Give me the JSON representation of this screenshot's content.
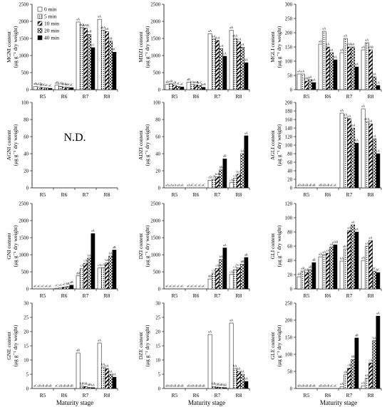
{
  "figure": {
    "xlabel": "Maturity stage",
    "categories": [
      "R5",
      "R6",
      "R7",
      "R8"
    ],
    "legend": [
      "0 min",
      "5 min",
      "10 min",
      "20 min",
      "40 min"
    ]
  },
  "chart_data": [
    {
      "type": "bar",
      "panel": "MGNI",
      "ylabel": "MGNI content",
      "ylabel2": "(μg g⁻¹ dry weight)",
      "ylim": [
        0,
        2500
      ],
      "yticks": [
        0,
        500,
        1000,
        1500,
        2000,
        2500
      ],
      "categories": [
        "R5",
        "R6",
        "R7",
        "R8"
      ],
      "legend": "top-left",
      "series": [
        {
          "name": "0 min",
          "values": [
            90,
            130,
            1980,
            2060
          ]
        },
        {
          "name": "5 min",
          "values": [
            80,
            100,
            1820,
            1740
          ]
        },
        {
          "name": "10 min",
          "values": [
            60,
            80,
            1800,
            1700
          ]
        },
        {
          "name": "20 min",
          "values": [
            50,
            70,
            1620,
            1420
          ]
        },
        {
          "name": "40 min",
          "values": [
            40,
            60,
            1230,
            1100
          ]
        }
      ],
      "labels": [
        [
          "aB",
          "aAB",
          "aBC",
          "aC",
          "aC"
        ],
        [
          "aB",
          "bAB",
          "abB",
          "abC",
          "aC"
        ],
        [
          "aA",
          "abA",
          "abAB",
          "bcB",
          "cC"
        ],
        [
          "aA",
          "abA",
          "bA",
          "cB",
          "dC"
        ]
      ]
    },
    {
      "type": "bar",
      "panel": "MDZI",
      "ylabel": "MDZI content",
      "ylabel2": "(μg g⁻¹ dry weight)",
      "ylim": [
        0,
        2500
      ],
      "yticks": [
        0,
        500,
        1000,
        1500,
        2000,
        2500
      ],
      "categories": [
        "R5",
        "R6",
        "R7",
        "R8"
      ],
      "series": [
        {
          "name": "0 min",
          "values": [
            150,
            220,
            1640,
            1740
          ]
        },
        {
          "name": "5 min",
          "values": [
            170,
            150,
            1480,
            1500
          ]
        },
        {
          "name": "10 min",
          "values": [
            130,
            140,
            1440,
            1400
          ]
        },
        {
          "name": "20 min",
          "values": [
            100,
            120,
            1200,
            1240
          ]
        },
        {
          "name": "40 min",
          "values": [
            80,
            70,
            980,
            790
          ]
        }
      ],
      "labels": [
        [
          "aB",
          "aB",
          "aB",
          "aC",
          "aC"
        ],
        [
          "aB",
          "bA",
          "abB",
          "bcC",
          "bcB"
        ],
        [
          "aA",
          "bA",
          "abA",
          "bcA",
          "cA"
        ],
        [
          "aA",
          "abA",
          "bcA",
          "cA",
          "dA"
        ]
      ]
    },
    {
      "type": "bar",
      "panel": "MGLI",
      "ylabel": "MGLI content",
      "ylabel2": "(μg g⁻¹ dry weight)",
      "ylim": [
        0,
        300
      ],
      "yticks": [
        0,
        50,
        100,
        150,
        200,
        250,
        300
      ],
      "categories": [
        "R5",
        "R6",
        "R7",
        "R8"
      ],
      "series": [
        {
          "name": "0 min",
          "values": [
            55,
            160,
            130,
            140
          ]
        },
        {
          "name": "5 min",
          "values": [
            55,
            205,
            180,
            165
          ]
        },
        {
          "name": "10 min",
          "values": [
            30,
            150,
            150,
            140
          ]
        },
        {
          "name": "20 min",
          "values": [
            35,
            130,
            150,
            45
          ]
        },
        {
          "name": "40 min",
          "values": [
            25,
            105,
            80,
            15
          ]
        }
      ],
      "labels": [
        [
          "aA",
          "aA",
          "aAB",
          "aA",
          "aA"
        ],
        [
          "aA",
          "aA",
          "aA",
          "aA",
          "bA"
        ],
        [
          "aA",
          "aA",
          "aAB",
          "aA",
          "aA"
        ],
        [
          "aA",
          "aA",
          "aAB",
          "bA",
          "cA"
        ]
      ]
    },
    {
      "type": "bar",
      "panel": "AGNI",
      "ylabel": "AGNI content",
      "ylabel2": "(μg g⁻¹ dry weight)",
      "ylim": [
        0,
        100
      ],
      "yticks": [
        0,
        20,
        40,
        60,
        80,
        100
      ],
      "categories": [
        "R5",
        "R6",
        "R7",
        "R8"
      ],
      "note": "N.D.",
      "series": []
    },
    {
      "type": "bar",
      "panel": "ADZI",
      "ylabel": "ADZI content",
      "ylabel2": "(μg g⁻¹ dry weight)",
      "ylim": [
        0,
        100
      ],
      "yticks": [
        0,
        20,
        40,
        60,
        80,
        100
      ],
      "categories": [
        "R5",
        "R6",
        "R7",
        "R8"
      ],
      "series": [
        {
          "name": "0 min",
          "values": [
            0,
            0,
            9,
            6
          ]
        },
        {
          "name": "5 min",
          "values": [
            0,
            0,
            10,
            11
          ]
        },
        {
          "name": "10 min",
          "values": [
            0,
            0,
            13,
            16
          ]
        },
        {
          "name": "20 min",
          "values": [
            0,
            0,
            21,
            40
          ]
        },
        {
          "name": "40 min",
          "values": [
            0,
            0,
            34,
            61
          ]
        }
      ],
      "labels": [
        [
          "aA",
          "aA",
          "aA",
          "aA",
          "aA"
        ],
        [
          "aA",
          "aC",
          "aC",
          "aC",
          "aC"
        ],
        [
          "cB",
          "cB",
          "bcB",
          "bB",
          "aB"
        ],
        [
          "cA",
          "cA",
          "bcA",
          "bA",
          "aA"
        ]
      ]
    },
    {
      "type": "bar",
      "panel": "AGLI",
      "ylabel": "AGLI content",
      "ylabel2": "(μg g⁻¹ dry weight)",
      "ylim": [
        0,
        200
      ],
      "yticks": [
        0,
        20,
        40,
        60,
        80,
        100,
        120,
        140,
        160,
        180,
        200
      ],
      "categories": [
        "R5",
        "R6",
        "R7",
        "R8"
      ],
      "series": [
        {
          "name": "0 min",
          "values": [
            0,
            0,
            175,
            185
          ]
        },
        {
          "name": "5 min",
          "values": [
            0,
            0,
            165,
            155
          ]
        },
        {
          "name": "10 min",
          "values": [
            0,
            0,
            162,
            150
          ]
        },
        {
          "name": "20 min",
          "values": [
            0,
            0,
            140,
            115
          ]
        },
        {
          "name": "40 min",
          "values": [
            0,
            0,
            105,
            80
          ]
        }
      ],
      "labels": [
        [
          "aB",
          "aB",
          "aB",
          "aB",
          "aB"
        ],
        [
          "aB",
          "aB",
          "aB",
          "aC",
          "aC"
        ],
        [
          "aA",
          "aA",
          "aA",
          "abA",
          "bA"
        ],
        [
          "aA",
          "abA",
          "bA",
          "cA",
          "cA"
        ]
      ]
    },
    {
      "type": "bar",
      "panel": "GNI",
      "ylabel": "GNI content",
      "ylabel2": "(μg g⁻¹ dry weight)",
      "ylim": [
        0,
        2500
      ],
      "yticks": [
        0,
        500,
        1000,
        1500,
        2000,
        2500
      ],
      "categories": [
        "R5",
        "R6",
        "R7",
        "R8"
      ],
      "series": [
        {
          "name": "0 min",
          "values": [
            0,
            20,
            380,
            610
          ]
        },
        {
          "name": "5 min",
          "values": [
            0,
            30,
            600,
            620
          ]
        },
        {
          "name": "10 min",
          "values": [
            0,
            50,
            750,
            760
          ]
        },
        {
          "name": "20 min",
          "values": [
            0,
            70,
            900,
            960
          ]
        },
        {
          "name": "40 min",
          "values": [
            0,
            110,
            1620,
            1140
          ]
        }
      ],
      "labels": [
        [
          "aC",
          "aC",
          "aC",
          "aC",
          "aC"
        ],
        [
          "cC",
          "cC",
          "cC",
          "bB",
          "aB"
        ],
        [
          "dB",
          "cA",
          "cA",
          "bA",
          "aA"
        ],
        [
          "cA",
          "cA",
          "bA",
          "bA",
          "aB"
        ]
      ]
    },
    {
      "type": "bar",
      "panel": "DZI",
      "ylabel": "DZI content",
      "ylabel2": "(μg g⁻¹ dry weight)",
      "ylim": [
        0,
        2500
      ],
      "yticks": [
        0,
        500,
        1000,
        1500,
        2000,
        2500
      ],
      "categories": [
        "R5",
        "R6",
        "R7",
        "R8"
      ],
      "series": [
        {
          "name": "0 min",
          "values": [
            0,
            0,
            290,
            420
          ]
        },
        {
          "name": "5 min",
          "values": [
            0,
            0,
            460,
            560
          ]
        },
        {
          "name": "10 min",
          "values": [
            0,
            0,
            600,
            620
          ]
        },
        {
          "name": "20 min",
          "values": [
            0,
            0,
            860,
            720
          ]
        },
        {
          "name": "40 min",
          "values": [
            0,
            0,
            1200,
            920
          ]
        }
      ],
      "labels": [
        [
          "aC",
          "aC",
          "aC",
          "aC",
          "aC"
        ],
        [
          "aC",
          "aC",
          "aC",
          "aC",
          "aC"
        ],
        [
          "dB",
          "cA",
          "cA",
          "bA",
          "aA"
        ],
        [
          "cA",
          "cA",
          "bcA",
          "bB",
          "aB"
        ]
      ]
    },
    {
      "type": "bar",
      "panel": "GLI",
      "ylabel": "GLI content",
      "ylabel2": "(μg g⁻¹ dry weight)",
      "ylim": [
        0,
        120
      ],
      "yticks": [
        0,
        20,
        40,
        60,
        80,
        100,
        120
      ],
      "categories": [
        "R5",
        "R6",
        "R7",
        "R8"
      ],
      "series": [
        {
          "name": "0 min",
          "values": [
            17,
            45,
            39,
            40
          ]
        },
        {
          "name": "5 min",
          "values": [
            25,
            48,
            56,
            60
          ]
        },
        {
          "name": "10 min",
          "values": [
            23,
            50,
            82,
            68
          ]
        },
        {
          "name": "20 min",
          "values": [
            27,
            59,
            90,
            25
          ]
        },
        {
          "name": "40 min",
          "values": [
            37,
            62,
            80,
            23
          ]
        }
      ],
      "labels": [
        [
          "aB",
          "aB",
          "abB",
          "aB",
          "aB"
        ],
        [
          "aA",
          "aA",
          "aA",
          "aA",
          "aAB"
        ],
        [
          "bA",
          "abA",
          "aA",
          "aA",
          "aA"
        ],
        [
          "aA",
          "aA",
          "aA",
          "bC",
          "bC"
        ]
      ]
    },
    {
      "type": "bar",
      "panel": "GNE",
      "ylabel": "GNE content",
      "ylabel2": "(μg g⁻¹ dry weight)",
      "ylim": [
        0,
        30
      ],
      "yticks": [
        0,
        5,
        10,
        15,
        20,
        25,
        30
      ],
      "categories": [
        "R5",
        "R6",
        "R7",
        "R8"
      ],
      "series": [
        {
          "name": "0 min",
          "values": [
            0,
            0,
            12.5,
            16
          ]
        },
        {
          "name": "5 min",
          "values": [
            0,
            0,
            0.8,
            7.5
          ]
        },
        {
          "name": "10 min",
          "values": [
            0,
            0,
            0.7,
            7
          ]
        },
        {
          "name": "20 min",
          "values": [
            0,
            0,
            0.4,
            5
          ]
        },
        {
          "name": "40 min",
          "values": [
            0,
            0,
            0.3,
            4
          ]
        }
      ],
      "labels": [
        [
          "aC",
          "aB",
          "aB",
          "aB",
          "aB"
        ],
        [
          "aC",
          "aB",
          "aB",
          "aB",
          "aB"
        ],
        [
          "aB",
          "bB",
          "bB",
          "bB",
          "bA"
        ],
        [
          "aA",
          "bA",
          "bA",
          "bA",
          "bA"
        ]
      ]
    },
    {
      "type": "bar",
      "panel": "DZE",
      "ylabel": "DZE content",
      "ylabel2": "(μg g⁻¹ dry weight)",
      "ylim": [
        0,
        30
      ],
      "yticks": [
        0,
        5,
        10,
        15,
        20,
        25,
        30
      ],
      "categories": [
        "R5",
        "R6",
        "R7",
        "R8"
      ],
      "series": [
        {
          "name": "0 min",
          "values": [
            0,
            0,
            19,
            23
          ]
        },
        {
          "name": "5 min",
          "values": [
            0,
            0,
            0.7,
            7
          ]
        },
        {
          "name": "10 min",
          "values": [
            0,
            0,
            0.5,
            6
          ]
        },
        {
          "name": "20 min",
          "values": [
            0,
            0,
            0.4,
            5
          ]
        },
        {
          "name": "40 min",
          "values": [
            0,
            0,
            0.3,
            2.5
          ]
        }
      ],
      "labels": [
        [
          "aB",
          "aB",
          "aB",
          "aB",
          "aB"
        ],
        [
          "aB",
          "aB",
          "aB",
          "aB",
          "aB"
        ],
        [
          "aA",
          "bB",
          "bB",
          "bB",
          "bB"
        ],
        [
          "aA",
          "bA",
          "bA",
          "bA",
          "bA"
        ]
      ]
    },
    {
      "type": "bar",
      "panel": "GLE",
      "ylabel": "GLE content",
      "ylabel2": "(μg g⁻¹ dry weight)",
      "ylim": [
        0,
        250
      ],
      "yticks": [
        0,
        50,
        100,
        150,
        200,
        250
      ],
      "categories": [
        "R5",
        "R6",
        "R7",
        "R8"
      ],
      "series": [
        {
          "name": "0 min",
          "values": [
            0,
            0,
            5,
            8
          ]
        },
        {
          "name": "5 min",
          "values": [
            0,
            0,
            40,
            30
          ]
        },
        {
          "name": "10 min",
          "values": [
            0,
            0,
            60,
            75
          ]
        },
        {
          "name": "20 min",
          "values": [
            0,
            0,
            85,
            140
          ]
        },
        {
          "name": "40 min",
          "values": [
            0,
            0,
            148,
            212
          ]
        }
      ],
      "labels": [
        [
          "aB",
          "aB",
          "aB",
          "aB",
          "aB"
        ],
        [
          "aB",
          "aB",
          "aB",
          "aC",
          "aC"
        ],
        [
          "eA",
          "dB",
          "cB",
          "bB",
          "aB"
        ],
        [
          "eA",
          "dA",
          "cA",
          "bA",
          "aA"
        ]
      ]
    }
  ]
}
